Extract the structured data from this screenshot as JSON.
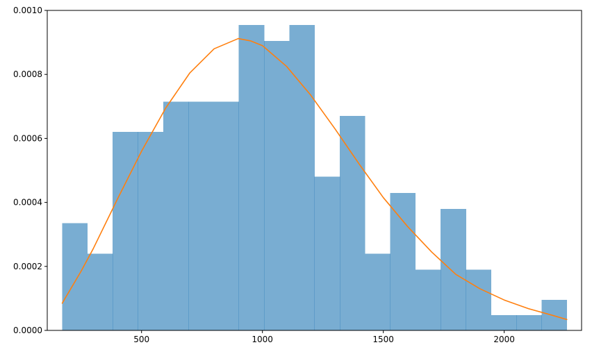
{
  "chart_data": {
    "type": "bar",
    "histogram": {
      "bin_edges": [
        172,
        276.35,
        380.7,
        485.05,
        589.4,
        693.75,
        798.1,
        902.45,
        1006.8,
        1111.15,
        1215.5,
        1319.85,
        1424.2,
        1528.55,
        1632.9,
        1737.25,
        1841.6,
        1945.95,
        2050.3,
        2154.65,
        2259
      ],
      "values": [
        0.000335,
        0.00024,
        0.00062,
        0.00062,
        0.000715,
        0.000715,
        0.000715,
        0.000955,
        0.000905,
        0.000955,
        0.00048,
        0.00067,
        0.00024,
        0.00043,
        0.00019,
        0.00038,
        0.00019,
        4.8e-05,
        4.8e-05,
        9.5e-05
      ],
      "color": "#1f77b4",
      "alpha": 0.6
    },
    "series": [
      {
        "type": "line",
        "color": "#ff7f0e",
        "x": [
          172,
          250,
          300,
          400,
          500,
          600,
          700,
          800,
          900,
          950,
          1000,
          1100,
          1200,
          1300,
          1400,
          1500,
          1600,
          1700,
          1800,
          1900,
          2000,
          2100,
          2200,
          2259
        ],
        "values": [
          8.5e-05,
          0.000185,
          0.000255,
          0.00041,
          0.00056,
          0.000695,
          0.000805,
          0.00088,
          0.000912,
          0.000905,
          0.00089,
          0.000825,
          0.000735,
          0.00063,
          0.00052,
          0.000415,
          0.000325,
          0.000245,
          0.000175,
          0.00013,
          9.5e-05,
          6.8e-05,
          4.7e-05,
          3.4e-05
        ]
      }
    ],
    "xlim": [
      110,
      2320
    ],
    "ylim": [
      0,
      0.001
    ],
    "xticks": [
      500,
      1000,
      1500,
      2000
    ],
    "xtick_labels": [
      "500",
      "1000",
      "1500",
      "2000"
    ],
    "yticks": [
      0,
      0.0002,
      0.0004,
      0.0006,
      0.0008,
      0.001
    ],
    "ytick_labels": [
      "0.0000",
      "0.0002",
      "0.0004",
      "0.0006",
      "0.0008",
      "0.0010"
    ],
    "grid": false,
    "title": "",
    "xlabel": "",
    "ylabel": ""
  }
}
